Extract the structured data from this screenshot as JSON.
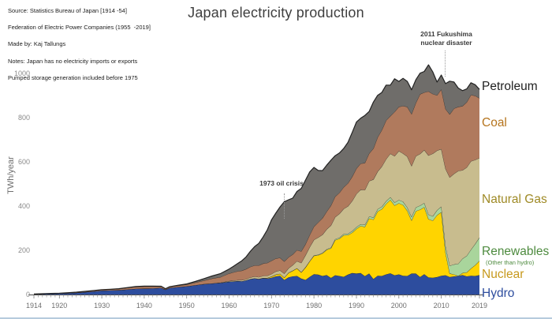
{
  "title": "Japan electricity production",
  "source_notes": {
    "line1": "Source: Statistics Bureau of Japan [1914 -54]",
    "line2": "Federation of Electric Power Companies (1955  -2019]",
    "line3": "Made by: Kaj Tallungs",
    "line4": "Notes: Japan has no electricity imports or exports",
    "line5": "Pumped storage generation included before 1975"
  },
  "annotations": {
    "oil_crisis": {
      "text": "1973 oil crisis",
      "year": 1973
    },
    "fukushima": {
      "text": "2011 Fukushima\nnuclear disaster",
      "year": 2011
    }
  },
  "legend": [
    {
      "label": "Petroleum",
      "color": "#1f1f1f"
    },
    {
      "label": "Coal",
      "color": "#b5741d"
    },
    {
      "label": "Natural Gas",
      "color": "#9f8a26"
    },
    {
      "label": "Renewables",
      "sublabel": "(Other than hydro)",
      "color": "#4e8b3f"
    },
    {
      "label": "Nuclear",
      "color": "#c7991c"
    },
    {
      "label": "Hydro",
      "color": "#2d4d9e"
    }
  ],
  "page_colors": {
    "background": "#ffffff",
    "bottom_rule": "#b6cbdd",
    "axis": "#4a4a4a",
    "tick": "#9b9b9b",
    "tick_label": "#6f6f6f",
    "outline": "#222222"
  },
  "chart_data": {
    "type": "area",
    "stacked": true,
    "title": "Japan electricity production",
    "xlabel": "",
    "ylabel": "TWh/year",
    "xlim": [
      1914,
      2019
    ],
    "ylim": [
      0,
      1050
    ],
    "grid": false,
    "legend_position": "right",
    "y_ticks": [
      0,
      200,
      400,
      600,
      800,
      1000
    ],
    "x_ticks": [
      1914,
      1920,
      1930,
      1940,
      1950,
      1960,
      1970,
      1980,
      1990,
      2000,
      2010,
      2019
    ],
    "years": [
      1914,
      1916,
      1918,
      1920,
      1922,
      1924,
      1926,
      1928,
      1930,
      1932,
      1934,
      1936,
      1938,
      1940,
      1942,
      1944,
      1945,
      1946,
      1948,
      1950,
      1952,
      1954,
      1956,
      1958,
      1960,
      1961,
      1962,
      1963,
      1964,
      1965,
      1966,
      1967,
      1968,
      1969,
      1970,
      1971,
      1972,
      1973,
      1974,
      1975,
      1976,
      1977,
      1978,
      1979,
      1980,
      1981,
      1982,
      1983,
      1984,
      1985,
      1986,
      1987,
      1988,
      1989,
      1990,
      1991,
      1992,
      1993,
      1994,
      1995,
      1996,
      1997,
      1998,
      1999,
      2000,
      2001,
      2002,
      2003,
      2004,
      2005,
      2006,
      2007,
      2008,
      2009,
      2010,
      2011,
      2012,
      2013,
      2014,
      2015,
      2016,
      2017,
      2018,
      2019
    ],
    "series": [
      {
        "name": "Hydro",
        "color": "#2d4d9e",
        "values": [
          1.5,
          2.5,
          3.5,
          4.5,
          6,
          8,
          11,
          14,
          18,
          19,
          20,
          23,
          26,
          27,
          28,
          30,
          22,
          30,
          34,
          37,
          42,
          47,
          50,
          53,
          58,
          59,
          61,
          60,
          64,
          70,
          73,
          70,
          74,
          73,
          76,
          82,
          85,
          66,
          78,
          82,
          84,
          72,
          66,
          80,
          92,
          90,
          84,
          88,
          75,
          87,
          84,
          80,
          90,
          97,
          95,
          97,
          83,
          95,
          70,
          85,
          84,
          91,
          96,
          87,
          91,
          85,
          84,
          95,
          95,
          79,
          92,
          77,
          76,
          79,
          85,
          87,
          79,
          82,
          84,
          88,
          82,
          85,
          84,
          88
        ]
      },
      {
        "name": "Nuclear",
        "color": "#ffd400",
        "values": [
          0,
          0,
          0,
          0,
          0,
          0,
          0,
          0,
          0,
          0,
          0,
          0,
          0,
          0,
          0,
          0,
          0,
          0,
          0,
          0,
          0,
          0,
          0,
          0,
          0,
          0,
          0,
          0,
          0,
          0,
          0.3,
          0.6,
          1,
          2,
          5,
          8,
          9,
          10,
          20,
          25,
          34,
          28,
          56,
          70,
          83,
          88,
          102,
          114,
          134,
          159,
          168,
          188,
          179,
          183,
          202,
          213,
          223,
          249,
          269,
          291,
          302,
          319,
          332,
          316,
          322,
          320,
          295,
          240,
          282,
          305,
          303,
          264,
          258,
          280,
          288,
          102,
          16,
          9,
          0,
          9,
          18,
          33,
          49,
          64
        ]
      },
      {
        "name": "Renewables (other than hydro)",
        "color": "#a9d59c",
        "values": [
          0,
          0,
          0,
          0,
          0,
          0,
          0,
          0,
          0,
          0,
          0,
          0,
          0,
          0,
          0,
          0,
          0,
          0,
          0,
          0,
          0,
          0,
          0,
          0,
          0,
          0,
          0,
          0,
          0,
          0,
          0,
          0,
          0,
          0,
          0,
          0,
          0,
          0.5,
          0.5,
          1,
          1,
          1,
          1.5,
          1.5,
          2,
          2,
          2.5,
          3,
          3.5,
          4,
          5,
          5.5,
          6,
          7,
          8,
          8,
          9,
          9,
          9.5,
          10,
          11,
          12,
          12,
          13,
          14,
          15,
          15,
          16,
          17,
          18,
          19,
          20,
          20,
          22,
          25,
          30,
          35,
          45,
          55,
          65,
          75,
          85,
          96,
          106
        ]
      },
      {
        "name": "Natural Gas",
        "color": "#c8bc8e",
        "values": [
          0,
          0,
          0,
          0,
          0,
          0,
          0,
          0,
          0,
          0,
          0,
          0,
          0,
          0,
          0,
          0,
          0,
          0,
          0,
          0,
          0,
          0,
          0,
          1,
          3,
          4,
          4,
          5,
          5,
          7,
          8,
          8,
          9,
          10,
          12,
          14,
          15,
          18,
          20,
          25,
          32,
          42,
          54,
          63,
          70,
          78,
          82,
          90,
          100,
          100,
          108,
          114,
          124,
          136,
          150,
          156,
          158,
          160,
          172,
          170,
          182,
          190,
          197,
          210,
          222,
          218,
          230,
          230,
          232,
          234,
          240,
          268,
          283,
          270,
          260,
          350,
          400,
          410,
          420,
          400,
          400,
          400,
          380,
          360
        ]
      },
      {
        "name": "Coal",
        "color": "#b07a5d",
        "values": [
          0.5,
          0.7,
          1,
          1,
          1.5,
          2,
          2.5,
          3,
          3,
          4,
          5,
          6.5,
          8,
          9,
          8,
          6,
          3,
          4,
          6,
          8,
          12,
          16,
          22,
          25,
          34,
          37,
          40,
          43,
          46,
          48,
          50,
          53,
          56,
          58,
          60,
          59,
          57,
          55,
          50,
          48,
          50,
          52,
          50,
          55,
          60,
          68,
          75,
          80,
          90,
          93,
          95,
          98,
          104,
          110,
          115,
          118,
          122,
          125,
          140,
          155,
          165,
          175,
          170,
          200,
          200,
          215,
          225,
          235,
          240,
          270,
          260,
          290,
          270,
          250,
          270,
          270,
          285,
          295,
          290,
          290,
          295,
          300,
          290,
          270
        ]
      },
      {
        "name": "Petroleum",
        "color": "#6f6d6a",
        "values": [
          0.3,
          0.4,
          0.5,
          0.5,
          0.6,
          0.7,
          0.8,
          1,
          1,
          1,
          1.5,
          2,
          2,
          2,
          2,
          1.5,
          1,
          1.5,
          2,
          3,
          5,
          8,
          12,
          16,
          20,
          27,
          35,
          45,
          55,
          70,
          85,
          100,
          120,
          150,
          185,
          205,
          230,
          270,
          260,
          255,
          265,
          285,
          290,
          285,
          268,
          235,
          215,
          210,
          205,
          185,
          180,
          175,
          185,
          200,
          210,
          205,
          215,
          190,
          210,
          190,
          170,
          160,
          140,
          150,
          115,
          125,
          115,
          110,
          105,
          95,
          95,
          120,
          100,
          60,
          65,
          115,
          150,
          120,
          85,
          70,
          60,
          55,
          50,
          40
        ]
      }
    ]
  }
}
